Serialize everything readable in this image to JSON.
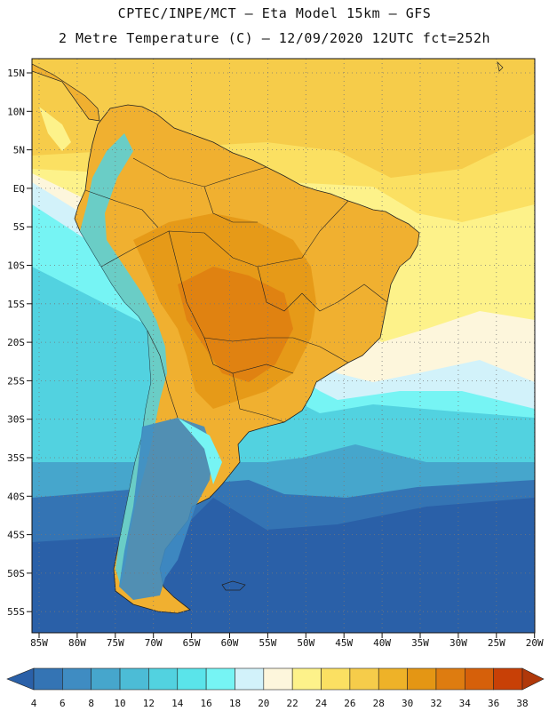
{
  "header": {
    "title_line1": "CPTEC/INPE/MCT —  Eta Model 15km — GFS",
    "title_line2": "2 Metre Temperature (C) — 12/09/2020 12UTC fct=252h"
  },
  "map": {
    "lat_labels": [
      "15N",
      "10N",
      "5N",
      "EQ",
      "5S",
      "10S",
      "15S",
      "20S",
      "25S",
      "30S",
      "35S",
      "40S",
      "45S",
      "50S",
      "55S"
    ],
    "lon_labels": [
      "85W",
      "80W",
      "75W",
      "70W",
      "65W",
      "60W",
      "55W",
      "50W",
      "45W",
      "40W",
      "35W",
      "30W",
      "25W",
      "20W"
    ]
  },
  "colorbar": {
    "labels": [
      "4",
      "6",
      "8",
      "10",
      "12",
      "14",
      "16",
      "18",
      "20",
      "22",
      "24",
      "26",
      "28",
      "30",
      "32",
      "34",
      "36",
      "38"
    ],
    "colors": [
      "#2a60a8",
      "#3474b4",
      "#3f8cc2",
      "#46a6cc",
      "#4cbcd6",
      "#52d2e0",
      "#5ae4ea",
      "#76f4f4",
      "#d2f2fa",
      "#fdf6dc",
      "#fdf28a",
      "#fbe062",
      "#f6cc4a",
      "#eeb228",
      "#e49614",
      "#de7c10",
      "#d6600a",
      "#c84006",
      "#b0380a"
    ]
  }
}
